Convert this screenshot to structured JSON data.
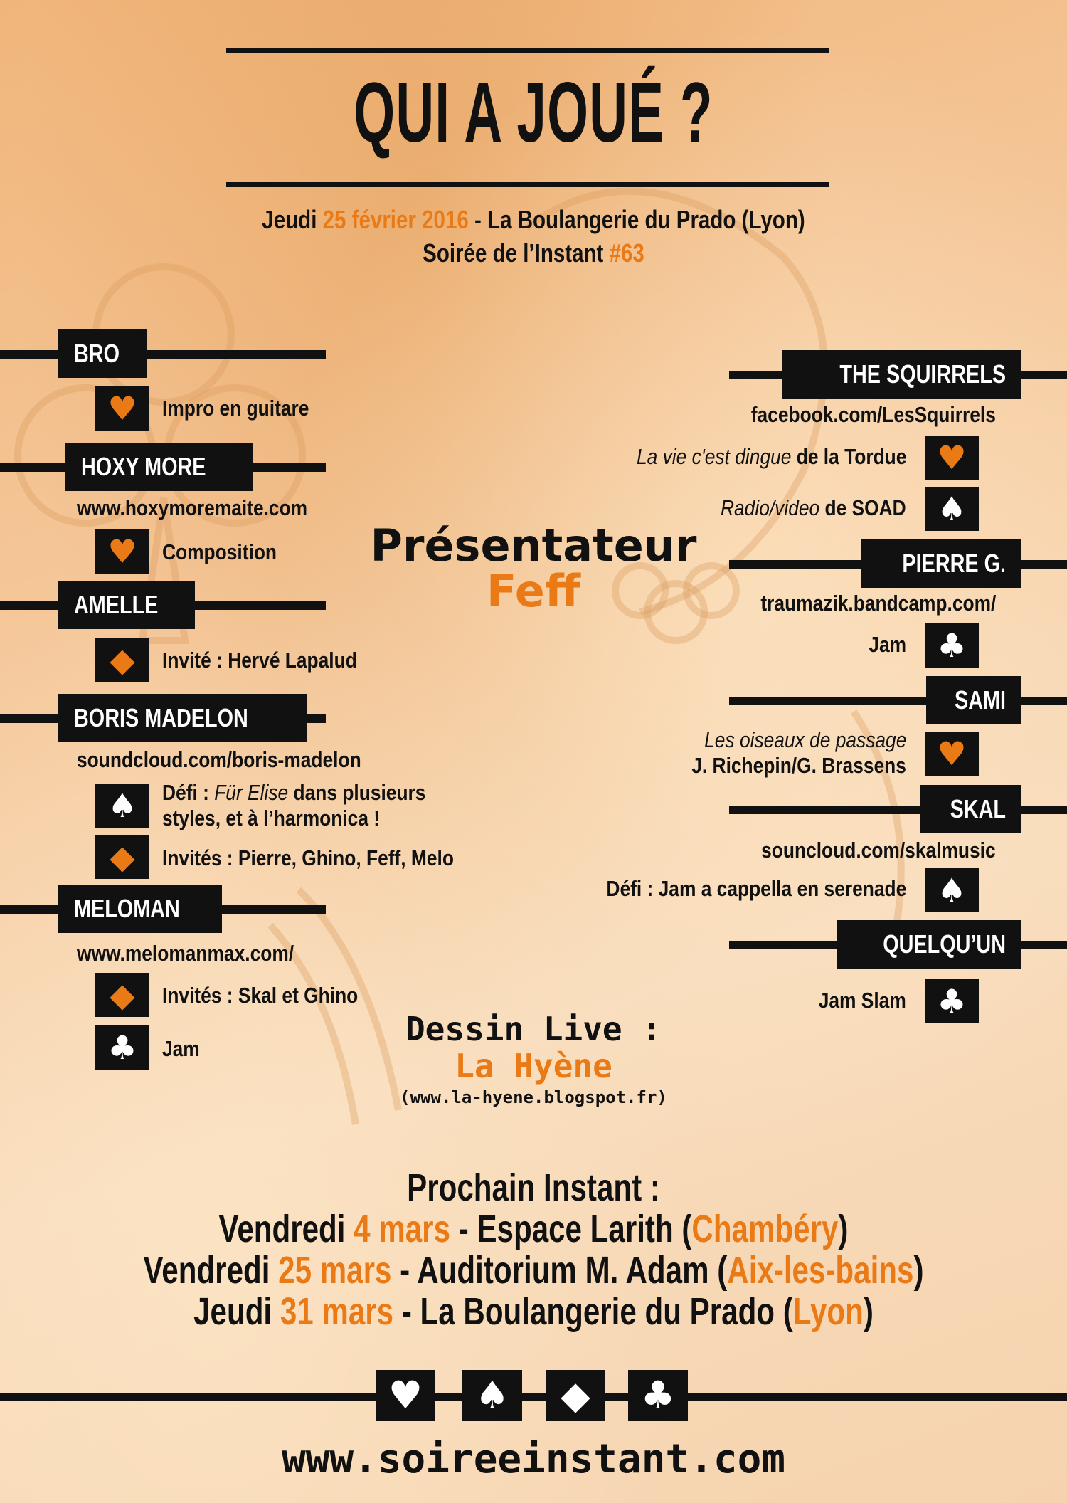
{
  "title": "QUI A JOUÉ ?",
  "subtitle": {
    "day": "Jeudi",
    "date": "25 février 2016",
    "place": "- La Boulangerie du Prado (Lyon)",
    "soiree": "Soirée de l’Instant",
    "number": "#63"
  },
  "left": {
    "bro": {
      "name": "BRO",
      "item1": "Impro en guitare"
    },
    "hoxy": {
      "name": "HOXY MORE",
      "link": "www.hoxymoremaite.com",
      "item1": "Composition"
    },
    "amelle": {
      "name": "AMELLE",
      "item1": "Invité : Hervé Lapalud"
    },
    "boris": {
      "name": "BORIS MADELON",
      "link": "soundcloud.com/boris-madelon",
      "item1_a": "Défi : ",
      "item1_b": "Für Elise",
      "item1_c": " dans plusieurs",
      "item1_d": "styles, et à l’harmonica !",
      "item2": "Invités : Pierre, Ghino, Feff, Melo"
    },
    "meloman": {
      "name": "MELOMAN",
      "link": "www.melomanmax.com/",
      "item1": "Invités : Skal et Ghino",
      "item2": "Jam"
    }
  },
  "right": {
    "squirrels": {
      "name": "THE SQUIRRELS",
      "link": "facebook.com/LesSquirrels",
      "item1_a": "La vie c'est dingue",
      "item1_b": " de la Tordue",
      "item2_a": "Radio/video",
      "item2_b": " de SOAD"
    },
    "pierre": {
      "name": "PIERRE G.",
      "link": "traumazik.bandcamp.com/",
      "item1": "Jam"
    },
    "sami": {
      "name": "SAMI",
      "item1_a": "Les oiseaux de passage",
      "item1_b": "J. Richepin/G. Brassens"
    },
    "skal": {
      "name": "SKAL",
      "link": "souncloud.com/skalmusic",
      "item1": "Défi : Jam a cappella en serenade"
    },
    "quelquun": {
      "name": "QUELQU’UN",
      "item1": "Jam Slam"
    }
  },
  "presenter": {
    "label": "Présentateur",
    "name": "Feff"
  },
  "dessin": {
    "label": "Dessin Live :",
    "name": "La Hyène",
    "link": "(www.la-hyene.blogspot.fr)"
  },
  "next": {
    "heading": "Prochain Instant :",
    "events": [
      {
        "day": "Vendredi",
        "date": "4 mars",
        "sep": "- Espace Larith",
        "city": "Chambéry"
      },
      {
        "day": "Vendredi",
        "date": "25 mars",
        "sep": "- Auditorium M. Adam",
        "city": "Aix-les-bains"
      },
      {
        "day": "Jeudi",
        "date": "31 mars",
        "sep": "- La Boulangerie du Prado",
        "city": "Lyon"
      }
    ]
  },
  "suits": {
    "heart": "♥",
    "spade": "♠",
    "diamond": "◆",
    "club": "♣"
  },
  "website": "www.soireeinstant.com",
  "colors": {
    "accent": "#ea7a16",
    "ink": "#111111"
  }
}
